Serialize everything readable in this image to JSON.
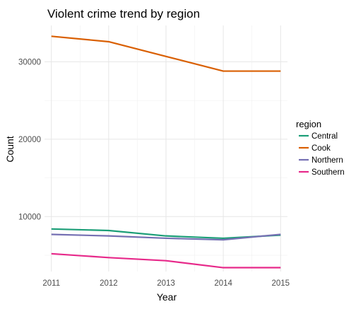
{
  "chart_data": {
    "type": "line",
    "title": "Violent crime trend by region",
    "xlabel": "Year",
    "ylabel": "Count",
    "x": [
      2011,
      2012,
      2013,
      2014,
      2015
    ],
    "x_ticks": [
      2011,
      2012,
      2013,
      2014,
      2015
    ],
    "y_ticks": [
      10000,
      20000,
      30000
    ],
    "ylim": [
      2900,
      34700
    ],
    "xlim": [
      2010.88,
      2015.12
    ],
    "grid": true,
    "legend": {
      "title": "region",
      "placement": "right"
    },
    "series": [
      {
        "name": "Central",
        "color": "#1b9e77",
        "values": [
          8400,
          8200,
          7500,
          7200,
          7600
        ]
      },
      {
        "name": "Cook",
        "color": "#d95f02",
        "values": [
          33300,
          32600,
          30700,
          28800,
          28800
        ]
      },
      {
        "name": "Northern",
        "color": "#7570b3",
        "values": [
          7700,
          7500,
          7200,
          7000,
          7700
        ]
      },
      {
        "name": "Southern",
        "color": "#e7298a",
        "values": [
          5200,
          4700,
          4300,
          3400,
          3400
        ]
      }
    ]
  }
}
